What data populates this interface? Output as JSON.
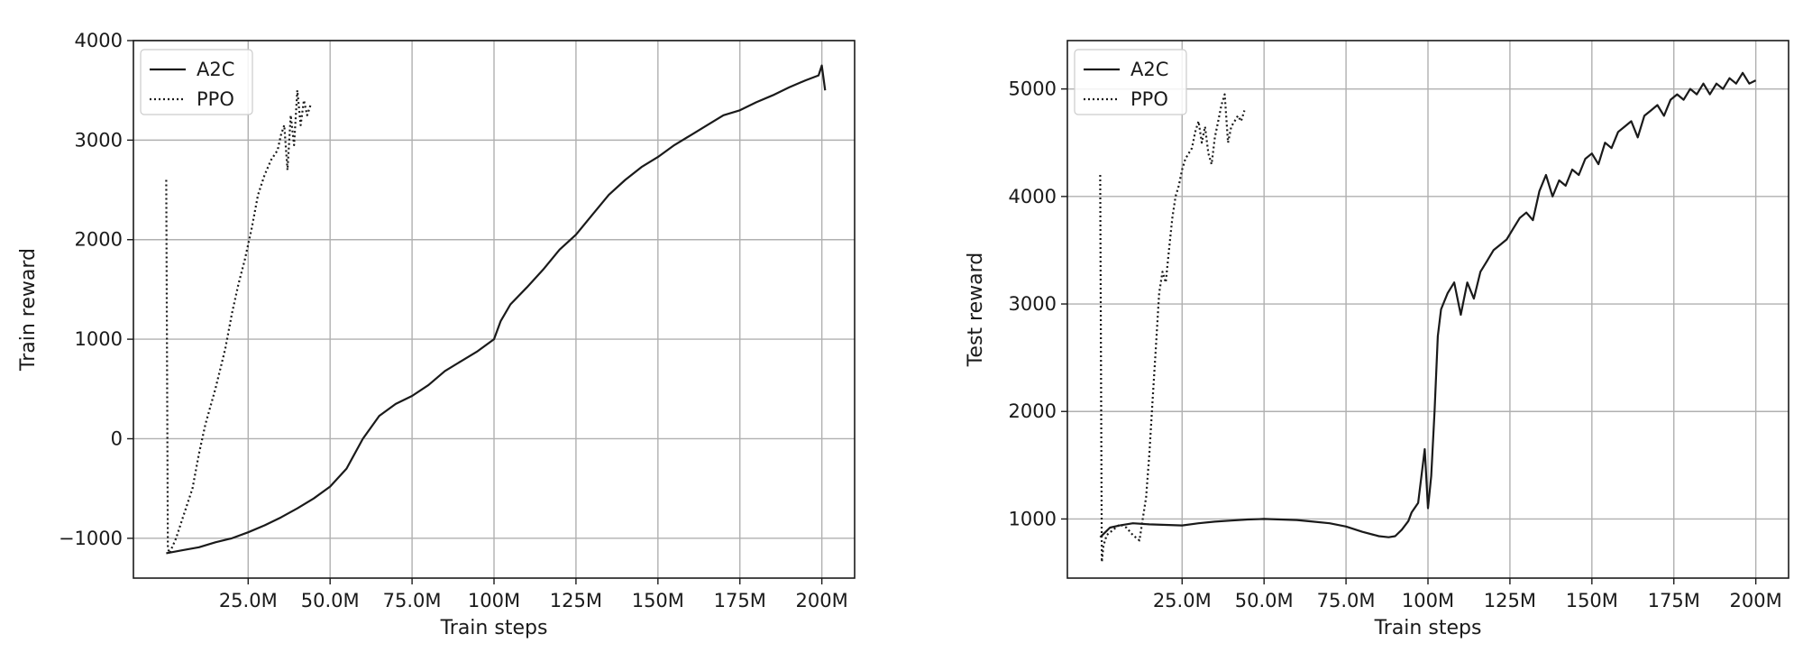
{
  "chart_data": [
    {
      "type": "line",
      "xlabel": "Train steps",
      "ylabel": "Train reward",
      "xlim": [
        -10,
        210
      ],
      "ylim": [
        -1400,
        4000
      ],
      "x_ticks": [
        25,
        50,
        75,
        100,
        125,
        150,
        175,
        200
      ],
      "x_tick_labels": [
        "25.0M",
        "50.0M",
        "75.0M",
        "100M",
        "125M",
        "150M",
        "175M",
        "200M"
      ],
      "y_ticks": [
        -1000,
        0,
        1000,
        2000,
        3000,
        4000
      ],
      "y_tick_labels": [
        "−1000",
        "0",
        "1000",
        "2000",
        "3000",
        "4000"
      ],
      "grid": true,
      "legend_position": "top-left",
      "series": [
        {
          "name": "A2C",
          "style": "solid",
          "x": [
            0,
            5,
            10,
            15,
            20,
            25,
            30,
            35,
            40,
            45,
            50,
            55,
            60,
            65,
            70,
            75,
            80,
            85,
            90,
            95,
            100,
            102,
            105,
            110,
            115,
            120,
            125,
            130,
            135,
            140,
            145,
            150,
            155,
            160,
            165,
            170,
            175,
            180,
            185,
            190,
            195,
            199,
            200,
            201
          ],
          "y": [
            -1150,
            -1120,
            -1090,
            -1040,
            -1000,
            -940,
            -870,
            -790,
            -700,
            -600,
            -480,
            -300,
            0,
            230,
            350,
            430,
            540,
            680,
            780,
            880,
            1000,
            1180,
            1350,
            1520,
            1700,
            1900,
            2050,
            2250,
            2450,
            2600,
            2730,
            2830,
            2950,
            3050,
            3150,
            3250,
            3300,
            3380,
            3450,
            3530,
            3600,
            3650,
            3750,
            3500
          ]
        },
        {
          "name": "PPO",
          "style": "dotted",
          "x": [
            0,
            0.5,
            1,
            3,
            5,
            8,
            10,
            12,
            15,
            18,
            20,
            22,
            24,
            26,
            28,
            30,
            32,
            34,
            35,
            36,
            37,
            38,
            39,
            40,
            41,
            42,
            43,
            44
          ],
          "y": [
            2600,
            -1100,
            -1150,
            -1000,
            -800,
            -500,
            -150,
            150,
            500,
            900,
            1250,
            1550,
            1800,
            2100,
            2450,
            2650,
            2800,
            2900,
            3050,
            3150,
            2700,
            3250,
            2950,
            3500,
            3150,
            3400,
            3250,
            3350
          ]
        }
      ]
    },
    {
      "type": "line",
      "xlabel": "Train steps",
      "ylabel": "Test reward",
      "xlim": [
        -10,
        210
      ],
      "ylim": [
        450,
        5450
      ],
      "x_ticks": [
        25,
        50,
        75,
        100,
        125,
        150,
        175,
        200
      ],
      "x_tick_labels": [
        "25.0M",
        "50.0M",
        "75.0M",
        "100M",
        "125M",
        "150M",
        "175M",
        "200M"
      ],
      "y_ticks": [
        1000,
        2000,
        3000,
        4000,
        5000
      ],
      "y_tick_labels": [
        "1000",
        "2000",
        "3000",
        "4000",
        "5000"
      ],
      "grid": true,
      "legend_position": "top-left",
      "series": [
        {
          "name": "A2C",
          "style": "solid",
          "x": [
            0,
            3,
            6,
            10,
            15,
            20,
            25,
            30,
            35,
            40,
            45,
            50,
            55,
            60,
            65,
            70,
            75,
            80,
            85,
            88,
            90,
            92,
            94,
            95,
            97,
            99,
            100,
            101,
            102,
            103,
            104,
            106,
            108,
            110,
            112,
            114,
            116,
            118,
            120,
            122,
            124,
            126,
            128,
            130,
            132,
            134,
            136,
            138,
            140,
            142,
            144,
            146,
            148,
            150,
            152,
            154,
            156,
            158,
            160,
            162,
            164,
            166,
            168,
            170,
            172,
            174,
            176,
            178,
            180,
            182,
            184,
            186,
            188,
            190,
            192,
            194,
            196,
            198,
            200
          ],
          "y": [
            830,
            920,
            940,
            960,
            950,
            945,
            940,
            960,
            975,
            985,
            995,
            1000,
            995,
            990,
            975,
            960,
            930,
            880,
            840,
            830,
            840,
            900,
            980,
            1060,
            1150,
            1650,
            1100,
            1400,
            2000,
            2700,
            2950,
            3100,
            3200,
            2900,
            3200,
            3050,
            3300,
            3400,
            3500,
            3550,
            3600,
            3700,
            3800,
            3850,
            3780,
            4050,
            4200,
            4000,
            4150,
            4100,
            4250,
            4200,
            4350,
            4400,
            4300,
            4500,
            4450,
            4600,
            4650,
            4700,
            4550,
            4750,
            4800,
            4850,
            4750,
            4900,
            4950,
            4900,
            5000,
            4950,
            5050,
            4950,
            5050,
            5000,
            5100,
            5050,
            5150,
            5050,
            5080
          ]
        },
        {
          "name": "PPO",
          "style": "dotted",
          "x": [
            0,
            0.5,
            1,
            2,
            4,
            6,
            8,
            10,
            12,
            13,
            14,
            15,
            16,
            17,
            18,
            19,
            20,
            21,
            22,
            23,
            24,
            25,
            26,
            27,
            28,
            29,
            30,
            31,
            32,
            33,
            34,
            35,
            36,
            37,
            38,
            39,
            40,
            41,
            42,
            43,
            44
          ],
          "y": [
            4200,
            600,
            750,
            850,
            900,
            950,
            920,
            850,
            800,
            1000,
            1200,
            1600,
            2100,
            2600,
            3100,
            3300,
            3200,
            3500,
            3800,
            4000,
            4100,
            4250,
            4350,
            4400,
            4450,
            4600,
            4700,
            4500,
            4650,
            4400,
            4300,
            4550,
            4700,
            4850,
            4950,
            4500,
            4650,
            4700,
            4750,
            4700,
            4800
          ]
        }
      ]
    }
  ]
}
